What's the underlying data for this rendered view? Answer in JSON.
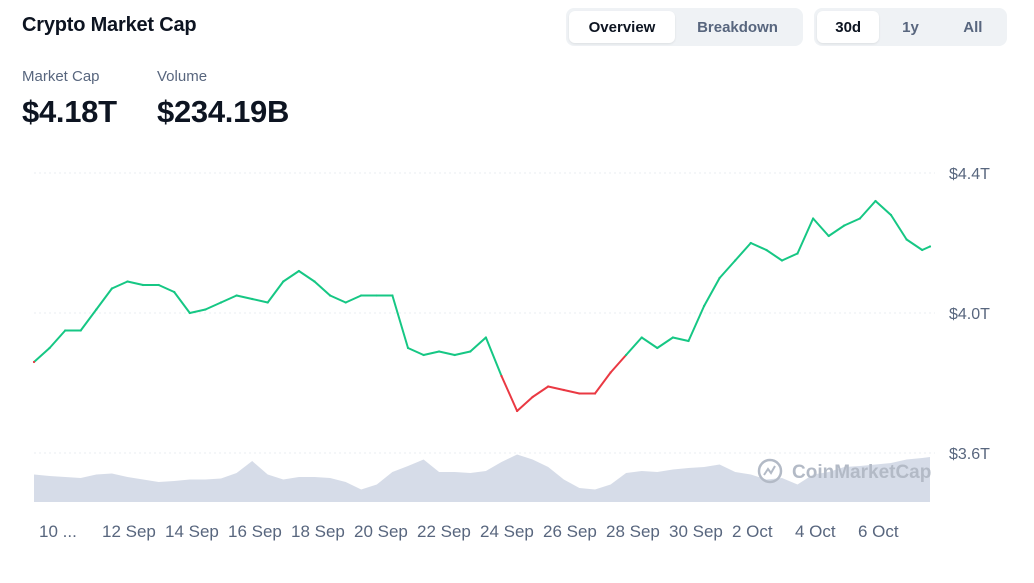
{
  "header": {
    "title": "Crypto Market Cap",
    "view_tabs": [
      {
        "label": "Overview",
        "active": true
      },
      {
        "label": "Breakdown",
        "active": false
      }
    ],
    "range_tabs": [
      {
        "label": "30d",
        "active": true
      },
      {
        "label": "1y",
        "active": false
      },
      {
        "label": "All",
        "active": false
      }
    ]
  },
  "stats": {
    "market_cap_label": "Market Cap",
    "market_cap_value": "$4.18T",
    "volume_label": "Volume",
    "volume_value": "$234.19B"
  },
  "watermark": "CoinMarketCap",
  "colors": {
    "up": "#16c784",
    "down": "#ea3943",
    "volume": "#cfd6e4",
    "grid": "#e9edf2"
  },
  "chart_data": {
    "type": "line",
    "title": "",
    "xlabel": "",
    "ylabel": "",
    "x_ticks": [
      "10 ...",
      "12 Sep",
      "14 Sep",
      "16 Sep",
      "18 Sep",
      "20 Sep",
      "22 Sep",
      "24 Sep",
      "26 Sep",
      "28 Sep",
      "30 Sep",
      "2 Oct",
      "4 Oct",
      "6 Oct"
    ],
    "y_ticks": [
      "$3.6T",
      "$4.0T",
      "$4.4T"
    ],
    "ylim": [
      3.6,
      4.4
    ],
    "y_unit": "trillion USD",
    "baseline": 3.87,
    "x_days": [
      0,
      0.5,
      1,
      1.5,
      2,
      2.5,
      3,
      3.5,
      4,
      4.5,
      5,
      5.5,
      6,
      6.5,
      7,
      7.5,
      8,
      8.5,
      9,
      9.5,
      10,
      10.5,
      11,
      11.5,
      12,
      12.5,
      13,
      13.5,
      14,
      14.5,
      15,
      15.5,
      16,
      16.5,
      17,
      17.5,
      18,
      18.5,
      19,
      19.5,
      20,
      20.5,
      21,
      21.5,
      22,
      22.5,
      23,
      23.5,
      24,
      24.5,
      25,
      25.5,
      26,
      26.5,
      27,
      27.5,
      28,
      28.5,
      28.75
    ],
    "market_cap": [
      3.86,
      3.9,
      3.95,
      3.95,
      4.01,
      4.07,
      4.09,
      4.08,
      4.08,
      4.06,
      4.0,
      4.01,
      4.03,
      4.05,
      4.04,
      4.03,
      4.09,
      4.12,
      4.09,
      4.05,
      4.03,
      4.05,
      4.05,
      4.05,
      3.9,
      3.88,
      3.89,
      3.88,
      3.89,
      3.93,
      3.82,
      3.72,
      3.76,
      3.79,
      3.78,
      3.77,
      3.77,
      3.83,
      3.88,
      3.93,
      3.9,
      3.93,
      3.92,
      4.02,
      4.1,
      4.15,
      4.2,
      4.18,
      4.15,
      4.17,
      4.27,
      4.22,
      4.25,
      4.27,
      4.32,
      4.28,
      4.21,
      4.18,
      4.19
    ],
    "volume_relative": [
      0.55,
      0.52,
      0.5,
      0.48,
      0.55,
      0.57,
      0.5,
      0.45,
      0.4,
      0.42,
      0.45,
      0.45,
      0.47,
      0.58,
      0.82,
      0.55,
      0.45,
      0.5,
      0.5,
      0.48,
      0.4,
      0.25,
      0.35,
      0.6,
      0.72,
      0.85,
      0.6,
      0.6,
      0.58,
      0.62,
      0.8,
      0.95,
      0.85,
      0.7,
      0.45,
      0.28,
      0.25,
      0.35,
      0.58,
      0.62,
      0.6,
      0.65,
      0.68,
      0.7,
      0.75,
      0.6,
      0.55,
      0.45,
      0.48,
      0.35,
      0.55,
      0.6,
      0.7,
      0.72,
      0.75,
      0.78,
      0.85,
      0.88,
      0.9
    ]
  }
}
